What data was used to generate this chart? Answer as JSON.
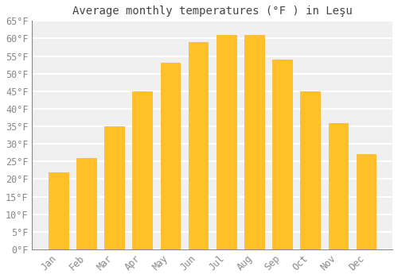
{
  "title": "Average monthly temperatures (°F ) in Leşu",
  "months": [
    "Jan",
    "Feb",
    "Mar",
    "Apr",
    "May",
    "Jun",
    "Jul",
    "Aug",
    "Sep",
    "Oct",
    "Nov",
    "Dec"
  ],
  "values": [
    22,
    26,
    35,
    45,
    53,
    59,
    61,
    61,
    54,
    45,
    36,
    27
  ],
  "bar_color_face": "#FFC125",
  "bar_color_edge": "#FFB020",
  "background_color": "#FFFFFF",
  "plot_bg_color": "#F0F0F0",
  "grid_color": "#FFFFFF",
  "ylim": [
    0,
    65
  ],
  "yticks": [
    0,
    5,
    10,
    15,
    20,
    25,
    30,
    35,
    40,
    45,
    50,
    55,
    60,
    65
  ],
  "ytick_labels": [
    "0°F",
    "5°F",
    "10°F",
    "15°F",
    "20°F",
    "25°F",
    "30°F",
    "35°F",
    "40°F",
    "45°F",
    "50°F",
    "55°F",
    "60°F",
    "65°F"
  ],
  "tick_color": "#888888",
  "title_fontsize": 10,
  "tick_fontsize": 8.5,
  "font_family": "monospace",
  "title_color": "#444444"
}
